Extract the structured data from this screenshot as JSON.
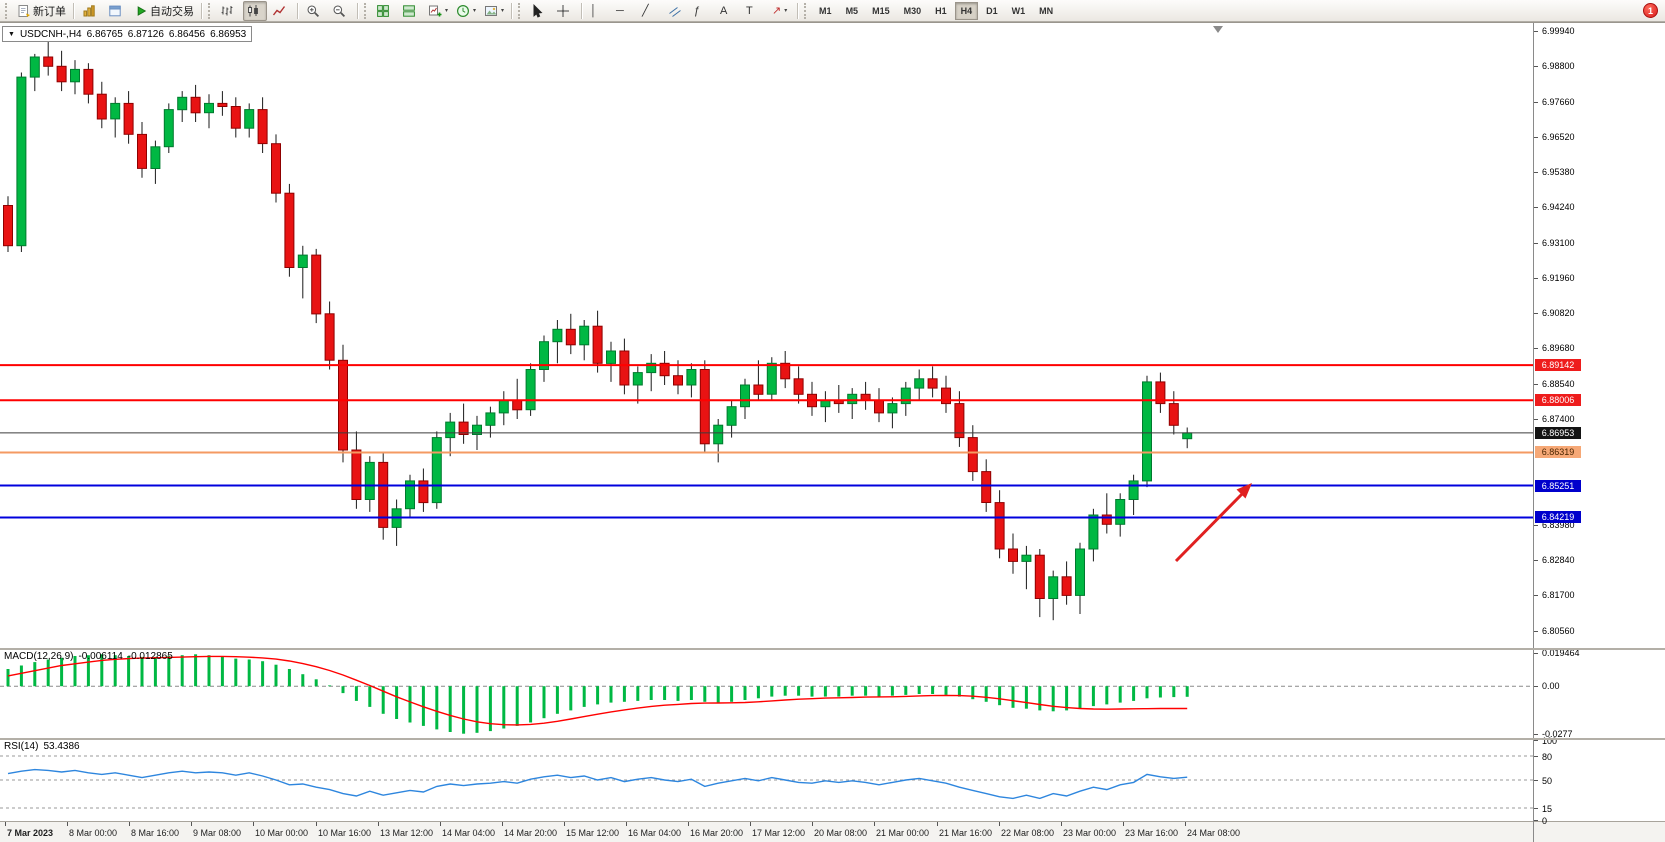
{
  "toolbar": {
    "notification_badge": "1",
    "active_timeframe": "H4",
    "timeframes": [
      "M1",
      "M5",
      "M15",
      "M30",
      "H1",
      "H4",
      "D1",
      "W1",
      "MN"
    ],
    "items": [
      {
        "kind": "grip"
      },
      {
        "kind": "button",
        "name": "new-order-button",
        "icon": "new-order",
        "label": "新订单"
      },
      {
        "kind": "sep"
      },
      {
        "kind": "button",
        "name": "indicator-list-button",
        "icon": "indicators"
      },
      {
        "kind": "button",
        "name": "data-window-button",
        "icon": "data-window"
      },
      {
        "kind": "button",
        "name": "autotrading-button",
        "icon": "autotrading",
        "label": "自动交易"
      },
      {
        "kind": "sep"
      },
      {
        "kind": "grip"
      },
      {
        "kind": "button",
        "name": "bar-chart-button",
        "icon": "bars"
      },
      {
        "kind": "button",
        "name": "candlestick-chart-button",
        "icon": "candles",
        "active": true
      },
      {
        "kind": "button",
        "name": "line-chart-button",
        "icon": "line"
      },
      {
        "kind": "sep"
      },
      {
        "kind": "button",
        "name": "zoom-in-button",
        "icon": "zoom-in"
      },
      {
        "kind": "button",
        "name": "zoom-out-button",
        "icon": "zoom-out"
      },
      {
        "kind": "sep"
      },
      {
        "kind": "grip"
      },
      {
        "kind": "button",
        "name": "auto-arrange-button",
        "icon": "arrange"
      },
      {
        "kind": "button",
        "name": "tile-windows-button",
        "icon": "tile"
      },
      {
        "kind": "button",
        "name": "new-chart-button",
        "icon": "new-chart",
        "caret": true
      },
      {
        "kind": "button",
        "name": "profiles-button",
        "icon": "clock",
        "caret": true
      },
      {
        "kind": "button",
        "name": "templates-button",
        "icon": "template",
        "caret": true
      },
      {
        "kind": "sep"
      },
      {
        "kind": "grip"
      },
      {
        "kind": "button",
        "name": "cursor-button",
        "icon": "cursor"
      },
      {
        "kind": "button",
        "name": "crosshair-button",
        "icon": "crosshair"
      },
      {
        "kind": "sep"
      },
      {
        "kind": "button",
        "name": "vertical-line-button",
        "glyph": "│",
        "glyph_color": "#333333"
      },
      {
        "kind": "button",
        "name": "horizontal-line-button",
        "glyph": "─",
        "glyph_color": "#333333"
      },
      {
        "kind": "button",
        "name": "trendline-button",
        "glyph": "╱",
        "glyph_color": "#333333"
      },
      {
        "kind": "button",
        "name": "equidistant-channel-button",
        "icon": "channel"
      },
      {
        "kind": "button",
        "name": "fibonacci-button",
        "glyph": "ƒ",
        "glyph_color": "#333333"
      },
      {
        "kind": "button",
        "name": "text-button",
        "glyph": "A",
        "glyph_color": "#333333"
      },
      {
        "kind": "button",
        "name": "text-label-button",
        "glyph": "T",
        "glyph_color": "#333333"
      },
      {
        "kind": "button",
        "name": "arrows-button",
        "glyph": "↗",
        "glyph_color": "#c03030",
        "caret": true
      },
      {
        "kind": "sep"
      },
      {
        "kind": "grip"
      }
    ]
  },
  "chart_window": {
    "symbol_period": "USDCNH-,H4",
    "open": "6.86765",
    "high": "6.87126",
    "low": "6.86456",
    "close": "6.86953"
  },
  "price_axis": {
    "ticks": [
      6.9994,
      6.988,
      6.9766,
      6.9652,
      6.9538,
      6.9424,
      6.931,
      6.9196,
      6.9082,
      6.8968,
      6.8854,
      6.874,
      6.8398,
      6.8284,
      6.817,
      6.8056
    ]
  },
  "lines": [
    {
      "name": "resistance-line-1",
      "price": 6.89142,
      "label": "6.89142",
      "color": "#ff0000",
      "label_bg": "#ee1c1c",
      "label_text": "#ffffff",
      "width": 2
    },
    {
      "name": "resistance-line-2",
      "price": 6.88006,
      "label": "6.88006",
      "color": "#ff0000",
      "label_bg": "#ee1c1c",
      "label_text": "#ffffff",
      "width": 2
    },
    {
      "name": "current-price-line",
      "price": 6.86953,
      "label": "6.86953",
      "color": "#3c3c3c",
      "label_bg": "#141414",
      "label_text": "#ffffff",
      "width": 1
    },
    {
      "name": "bid-line",
      "price": 6.86319,
      "label": "6.86319",
      "color": "#f49a62",
      "label_bg": "#f6a876",
      "label_text": "#4a2500",
      "width": 2
    },
    {
      "name": "support-line-1",
      "price": 6.85251,
      "label": "6.85251",
      "color": "#0000dd",
      "label_bg": "#0000cc",
      "label_text": "#ffffff",
      "width": 2
    },
    {
      "name": "support-line-2",
      "price": 6.84219,
      "label": "6.84219",
      "color": "#0000dd",
      "label_bg": "#0000cc",
      "label_text": "#ffffff",
      "width": 2
    }
  ],
  "chart_data": {
    "type": "candlestick",
    "symbol": "USDCNH-",
    "period": "H4",
    "y_range": [
      6.8,
      7.002
    ],
    "up_color": "#00b843",
    "up_edge": "#007a2e",
    "down_color": "#e81313",
    "down_edge": "#8f0000",
    "wick_color": "#1a1a1a",
    "x_labels": [
      "7 Mar 2023",
      "8 Mar 00:00",
      "8 Mar 16:00",
      "9 Mar 08:00",
      "10 Mar 00:00",
      "10 Mar 16:00",
      "13 Mar 12:00",
      "14 Mar 04:00",
      "14 Mar 20:00",
      "15 Mar 12:00",
      "16 Mar 04:00",
      "16 Mar 20:00",
      "17 Mar 12:00",
      "20 Mar 08:00",
      "21 Mar 00:00",
      "21 Mar 16:00",
      "22 Mar 08:00",
      "23 Mar 00:00",
      "23 Mar 16:00",
      "24 Mar 08:00"
    ],
    "ohlc": [
      [
        6.943,
        6.946,
        6.928,
        6.93
      ],
      [
        6.93,
        6.986,
        6.928,
        6.9845
      ],
      [
        6.9845,
        6.992,
        6.98,
        6.991
      ],
      [
        6.991,
        6.9994,
        6.985,
        6.988
      ],
      [
        6.988,
        6.993,
        6.98,
        6.983
      ],
      [
        6.983,
        6.99,
        6.979,
        6.987
      ],
      [
        6.987,
        6.989,
        6.976,
        6.979
      ],
      [
        6.979,
        6.983,
        6.968,
        6.971
      ],
      [
        6.971,
        6.978,
        6.965,
        6.976
      ],
      [
        6.976,
        6.98,
        6.963,
        6.966
      ],
      [
        6.966,
        6.97,
        6.952,
        6.955
      ],
      [
        6.955,
        6.964,
        6.95,
        6.962
      ],
      [
        6.962,
        6.976,
        6.96,
        6.974
      ],
      [
        6.974,
        6.98,
        6.97,
        6.978
      ],
      [
        6.978,
        6.982,
        6.97,
        6.973
      ],
      [
        6.973,
        6.979,
        6.968,
        6.976
      ],
      [
        6.976,
        6.98,
        6.972,
        6.975
      ],
      [
        6.975,
        6.978,
        6.965,
        6.968
      ],
      [
        6.968,
        6.976,
        6.965,
        6.974
      ],
      [
        6.974,
        6.978,
        6.96,
        6.963
      ],
      [
        6.963,
        6.966,
        6.944,
        6.947
      ],
      [
        6.947,
        6.95,
        6.92,
        6.923
      ],
      [
        6.923,
        6.93,
        6.913,
        6.927
      ],
      [
        6.927,
        6.929,
        6.905,
        6.908
      ],
      [
        6.908,
        6.912,
        6.89,
        6.893
      ],
      [
        6.893,
        6.898,
        6.86,
        6.864
      ],
      [
        6.864,
        6.87,
        6.845,
        6.848
      ],
      [
        6.848,
        6.862,
        6.844,
        6.86
      ],
      [
        6.86,
        6.863,
        6.835,
        6.839
      ],
      [
        6.839,
        6.848,
        6.833,
        6.845
      ],
      [
        6.845,
        6.856,
        6.842,
        6.854
      ],
      [
        6.854,
        6.858,
        6.844,
        6.847
      ],
      [
        6.847,
        6.87,
        6.845,
        6.868
      ],
      [
        6.868,
        6.876,
        6.862,
        6.873
      ],
      [
        6.873,
        6.879,
        6.866,
        6.869
      ],
      [
        6.869,
        6.875,
        6.864,
        6.872
      ],
      [
        6.872,
        6.878,
        6.868,
        6.876
      ],
      [
        6.876,
        6.883,
        6.872,
        6.88
      ],
      [
        6.88,
        6.887,
        6.874,
        6.877
      ],
      [
        6.877,
        6.892,
        6.875,
        6.89
      ],
      [
        6.89,
        6.901,
        6.886,
        6.899
      ],
      [
        6.899,
        6.906,
        6.892,
        6.903
      ],
      [
        6.903,
        6.908,
        6.895,
        6.898
      ],
      [
        6.898,
        6.906,
        6.893,
        6.904
      ],
      [
        6.904,
        6.909,
        6.889,
        6.892
      ],
      [
        6.892,
        6.899,
        6.886,
        6.896
      ],
      [
        6.896,
        6.9,
        6.882,
        6.885
      ],
      [
        6.885,
        6.891,
        6.879,
        6.889
      ],
      [
        6.889,
        6.895,
        6.883,
        6.892
      ],
      [
        6.892,
        6.896,
        6.885,
        6.888
      ],
      [
        6.888,
        6.893,
        6.882,
        6.885
      ],
      [
        6.885,
        6.892,
        6.881,
        6.89
      ],
      [
        6.89,
        6.893,
        6.863,
        6.866
      ],
      [
        6.866,
        6.874,
        6.86,
        6.872
      ],
      [
        6.872,
        6.88,
        6.868,
        6.878
      ],
      [
        6.878,
        6.887,
        6.874,
        6.885
      ],
      [
        6.885,
        6.893,
        6.88,
        6.882
      ],
      [
        6.882,
        6.894,
        6.88,
        6.892
      ],
      [
        6.892,
        6.896,
        6.884,
        6.887
      ],
      [
        6.887,
        6.891,
        6.879,
        6.882
      ],
      [
        6.882,
        6.886,
        6.875,
        6.878
      ],
      [
        6.878,
        6.883,
        6.873,
        6.88
      ],
      [
        6.88,
        6.885,
        6.876,
        6.879
      ],
      [
        6.879,
        6.884,
        6.874,
        6.882
      ],
      [
        6.882,
        6.886,
        6.877,
        6.88
      ],
      [
        6.88,
        6.884,
        6.873,
        6.876
      ],
      [
        6.876,
        6.881,
        6.871,
        6.879
      ],
      [
        6.879,
        6.886,
        6.875,
        6.884
      ],
      [
        6.884,
        6.89,
        6.88,
        6.887
      ],
      [
        6.887,
        6.891,
        6.881,
        6.884
      ],
      [
        6.884,
        6.888,
        6.876,
        6.879
      ],
      [
        6.879,
        6.883,
        6.865,
        6.868
      ],
      [
        6.868,
        6.872,
        6.854,
        6.857
      ],
      [
        6.857,
        6.861,
        6.844,
        6.847
      ],
      [
        6.847,
        6.851,
        6.829,
        6.832
      ],
      [
        6.832,
        6.837,
        6.824,
        6.828
      ],
      [
        6.828,
        6.833,
        6.819,
        6.83
      ],
      [
        6.83,
        6.832,
        6.81,
        6.816
      ],
      [
        6.816,
        6.825,
        6.809,
        6.823
      ],
      [
        6.823,
        6.828,
        6.814,
        6.817
      ],
      [
        6.817,
        6.834,
        6.811,
        6.832
      ],
      [
        6.832,
        6.845,
        6.828,
        6.843
      ],
      [
        6.843,
        6.85,
        6.837,
        6.84
      ],
      [
        6.84,
        6.85,
        6.836,
        6.848
      ],
      [
        6.848,
        6.856,
        6.843,
        6.854
      ],
      [
        6.854,
        6.888,
        6.852,
        6.886
      ],
      [
        6.886,
        6.889,
        6.876,
        6.879
      ],
      [
        6.879,
        6.883,
        6.869,
        6.872
      ],
      [
        6.86765,
        6.87126,
        6.86456,
        6.86953
      ]
    ],
    "annotations": [
      {
        "name": "trend-arrow",
        "type": "arrow",
        "direction": "up-right",
        "color": "#e02020"
      }
    ],
    "indicators": [
      {
        "name": "MACD",
        "label": "MACD(12,26,9)",
        "main_value": "-0.006114",
        "signal_value": "-0.012865",
        "unit": 0.001,
        "y_range": [
          -0.03,
          0.021
        ],
        "y_ticks": [
          {
            "v": 0.019464,
            "t": "0.019464"
          },
          {
            "v": 0,
            "t": "0.00"
          },
          {
            "v": -0.0277,
            "t": "-0.0277"
          }
        ],
        "histogram_color": "#00b843",
        "signal_color": "#ff0000",
        "histogram": [
          10,
          12,
          14,
          15.5,
          16.5,
          17.5,
          18,
          18.5,
          18,
          17.5,
          17,
          17,
          17.5,
          18,
          18.5,
          18,
          17,
          16,
          15.5,
          14.5,
          12.5,
          10,
          7,
          4,
          0.5,
          -4,
          -8.5,
          -12,
          -16,
          -19,
          -21,
          -23,
          -25,
          -26.5,
          -27.5,
          -27,
          -26,
          -24.5,
          -23,
          -21,
          -18.5,
          -16,
          -14,
          -12,
          -10.5,
          -9.5,
          -9,
          -8.5,
          -8,
          -8,
          -8.5,
          -8,
          -9,
          -9.5,
          -9,
          -8,
          -7,
          -6,
          -5.5,
          -5.5,
          -6,
          -6,
          -6,
          -5.5,
          -5.5,
          -6,
          -5.5,
          -5,
          -4.5,
          -4.5,
          -5,
          -6,
          -7.5,
          -9,
          -11,
          -12.5,
          -13,
          -14,
          -14.5,
          -14,
          -13,
          -11.5,
          -10.5,
          -9.5,
          -8.5,
          -7,
          -6.5,
          -6.3,
          -6.1
        ],
        "signal": [
          6,
          7.5,
          9,
          10.5,
          12,
          13,
          14,
          15,
          15.6,
          16,
          16.3,
          16.5,
          16.7,
          16.9,
          17.1,
          17.3,
          17.3,
          17.1,
          16.8,
          16.4,
          15.7,
          14.6,
          13.1,
          11.3,
          9.1,
          6.5,
          3.5,
          0.4,
          -2.9,
          -6.1,
          -9.1,
          -11.9,
          -14.5,
          -16.9,
          -19,
          -20.6,
          -21.7,
          -22.3,
          -22.4,
          -22.1,
          -21.4,
          -20.3,
          -19,
          -17.6,
          -16.2,
          -14.9,
          -13.7,
          -12.7,
          -11.7,
          -11,
          -10.5,
          -10,
          -9.8,
          -9.7,
          -9.6,
          -9.4,
          -9,
          -8.5,
          -8,
          -7.5,
          -7.2,
          -6.9,
          -6.7,
          -6.5,
          -6.3,
          -6.2,
          -6.1,
          -5.9,
          -5.6,
          -5.4,
          -5.3,
          -5.4,
          -5.8,
          -6.4,
          -7.3,
          -8.4,
          -9.5,
          -10.6,
          -11.6,
          -12.4,
          -12.9,
          -13.2,
          -13.3,
          -13.2,
          -13.1,
          -13,
          -12.9,
          -12.9,
          -12.9
        ]
      },
      {
        "name": "RSI",
        "label": "RSI(14)",
        "value": "53.4386",
        "y_range": [
          0,
          100
        ],
        "levels": [
          80,
          50,
          15
        ],
        "y_ticks": [
          {
            "v": 100,
            "t": "100"
          },
          {
            "v": 80,
            "t": "80"
          },
          {
            "v": 50,
            "t": "50"
          },
          {
            "v": 15,
            "t": "15"
          },
          {
            "v": 0,
            "t": "0"
          }
        ],
        "line_color": "#2e86de",
        "values": [
          58,
          61,
          63,
          62,
          60,
          62,
          59,
          57,
          59,
          56,
          53,
          56,
          59,
          61,
          59,
          60,
          59,
          56,
          59,
          55,
          50,
          44,
          45,
          41,
          38,
          33,
          30,
          36,
          31,
          34,
          37,
          35,
          42,
          45,
          43,
          45,
          46,
          48,
          46,
          51,
          54,
          56,
          53,
          55,
          50,
          53,
          48,
          51,
          53,
          50,
          48,
          51,
          42,
          46,
          49,
          52,
          49,
          53,
          50,
          47,
          46,
          49,
          47,
          49,
          47,
          44,
          47,
          50,
          52,
          49,
          46,
          41,
          37,
          33,
          29,
          27,
          31,
          27,
          33,
          30,
          36,
          41,
          38,
          44,
          47,
          57,
          54,
          52,
          53.44
        ]
      }
    ]
  }
}
